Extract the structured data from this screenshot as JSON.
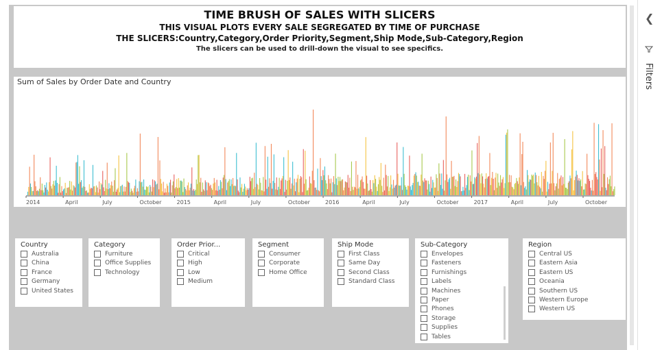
{
  "header": {
    "title": "TIME BRUSH OF SALES WITH SLICERS",
    "subtitle": "THIS VISUAL PLOTS EVERY SALE SEGREGATED BY TIME OF PURCHASE",
    "slicers_line": "THE SLICERS:Country,Category,Order Priority,Segment,Ship Mode,Sub-Category,Region",
    "description": "The slicers can be used to drill-down the visual to see specifics."
  },
  "chart_data": {
    "type": "bar",
    "title": "Sum of Sales by Order Date and Country",
    "x_ticks": [
      "2014",
      "April",
      "July",
      "October",
      "2015",
      "April",
      "July",
      "October",
      "2016",
      "April",
      "July",
      "October",
      "2017",
      "April",
      "July",
      "October"
    ],
    "series_colors": [
      "#f2885a",
      "#f5c342",
      "#3ebfd1",
      "#a7c94d",
      "#e8615e"
    ],
    "legend": "none"
  },
  "slicers": [
    {
      "title": "Country",
      "items": [
        "Australia",
        "China",
        "France",
        "Germany",
        "United States"
      ]
    },
    {
      "title": "Category",
      "items": [
        "Furniture",
        "Office Supplies",
        "Technology"
      ]
    },
    {
      "title": "Order Prior...",
      "items": [
        "Critical",
        "High",
        "Low",
        "Medium"
      ]
    },
    {
      "title": "Segment",
      "items": [
        "Consumer",
        "Corporate",
        "Home Office"
      ]
    },
    {
      "title": "Ship Mode",
      "items": [
        "First Class",
        "Same Day",
        "Second Class",
        "Standard Class"
      ]
    },
    {
      "title": "Sub-Category",
      "items": [
        "Envelopes",
        "Fasteners",
        "Furnishings",
        "Labels",
        "Machines",
        "Paper",
        "Phones",
        "Storage",
        "Supplies",
        "Tables"
      ]
    },
    {
      "title": "Region",
      "items": [
        "Central US",
        "Eastern Asia",
        "Eastern US",
        "Oceania",
        "Southern US",
        "Western Europe",
        "Western US"
      ]
    }
  ],
  "filters_pane": {
    "label": "Filters",
    "collapse_icon": "chevron-left-icon",
    "filter_icon": "filter-icon"
  }
}
